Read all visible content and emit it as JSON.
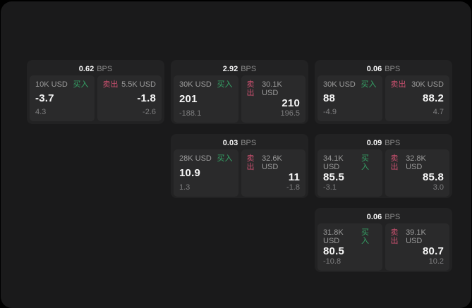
{
  "labels": {
    "bps_unit": "BPS",
    "buy": "买入",
    "sell": "卖出"
  },
  "colors": {
    "page_background": "#000000",
    "panel_background": "#1a1a1b",
    "card_background": "#222223",
    "quote_background": "#2a2a2b",
    "buy_accent": "#35a467",
    "sell_accent": "#c9506f",
    "value_text": "#f7f7f7",
    "muted_text": "#9b9b9b"
  },
  "cards": [
    {
      "row": 1,
      "col": 1,
      "bps": "0.62",
      "buy": {
        "amount": "10K USD",
        "value": "-3.7",
        "sub": "4.3"
      },
      "sell": {
        "amount": "5.5K USD",
        "value": "-1.8",
        "sub": "-2.6"
      }
    },
    {
      "row": 1,
      "col": 2,
      "bps": "2.92",
      "buy": {
        "amount": "30K USD",
        "value": "201",
        "sub": "-188.1"
      },
      "sell": {
        "amount": "30.1K USD",
        "value": "210",
        "sub": "196.5"
      }
    },
    {
      "row": 1,
      "col": 3,
      "bps": "0.06",
      "buy": {
        "amount": "30K USD",
        "value": "88",
        "sub": "-4.9"
      },
      "sell": {
        "amount": "30K USD",
        "value": "88.2",
        "sub": "4.7"
      }
    },
    {
      "row": 2,
      "col": 2,
      "bps": "0.03",
      "buy": {
        "amount": "28K USD",
        "value": "10.9",
        "sub": "1.3"
      },
      "sell": {
        "amount": "32.6K USD",
        "value": "11",
        "sub": "-1.8"
      }
    },
    {
      "row": 2,
      "col": 3,
      "bps": "0.09",
      "buy": {
        "amount": "34.1K USD",
        "value": "85.5",
        "sub": "-3.1"
      },
      "sell": {
        "amount": "32.8K USD",
        "value": "85.8",
        "sub": "3.0"
      }
    },
    {
      "row": 3,
      "col": 3,
      "bps": "0.06",
      "buy": {
        "amount": "31.8K USD",
        "value": "80.5",
        "sub": "-10.8"
      },
      "sell": {
        "amount": "39.1K USD",
        "value": "80.7",
        "sub": "10.2"
      }
    }
  ]
}
